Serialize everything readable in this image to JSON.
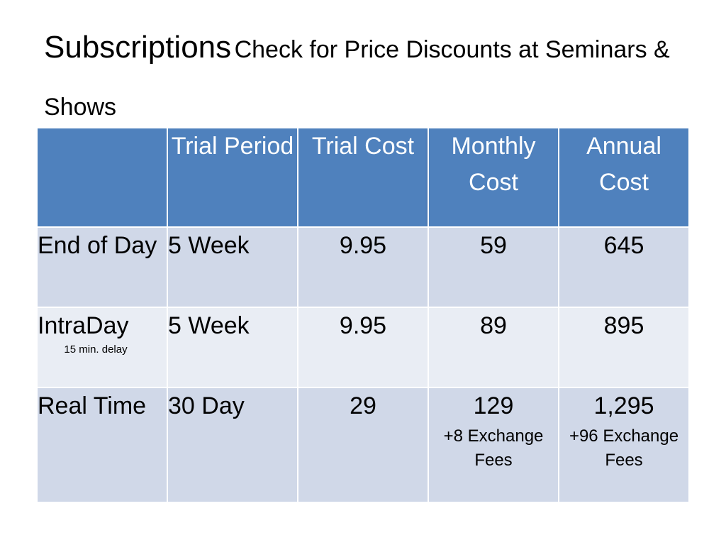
{
  "title": {
    "main": "Subscriptions",
    "sub": "Check for Price Discounts at Seminars & Shows"
  },
  "table": {
    "headers": [
      "",
      "Trial Period",
      "Trial Cost",
      "Monthly Cost",
      "Annual Cost"
    ],
    "rows": [
      {
        "name": "End of Day",
        "note": "",
        "trial_period": "5 Week",
        "trial_cost": "9.95",
        "monthly_cost": "59",
        "monthly_note": "",
        "annual_cost": "645",
        "annual_note": ""
      },
      {
        "name": "IntraDay",
        "note": "15 min. delay",
        "trial_period": "5 Week",
        "trial_cost": "9.95",
        "monthly_cost": "89",
        "monthly_note": "",
        "annual_cost": "895",
        "annual_note": ""
      },
      {
        "name": "Real Time",
        "note": "",
        "trial_period": "30 Day",
        "trial_cost": "29",
        "monthly_cost": "129",
        "monthly_note": "+8 Exchange Fees",
        "annual_cost": "1,295",
        "annual_note": "+96 Exchange Fees"
      }
    ]
  },
  "colors": {
    "header": "#4f81bd",
    "row_dark": "#d0d8e8",
    "row_light": "#e9edf4"
  }
}
